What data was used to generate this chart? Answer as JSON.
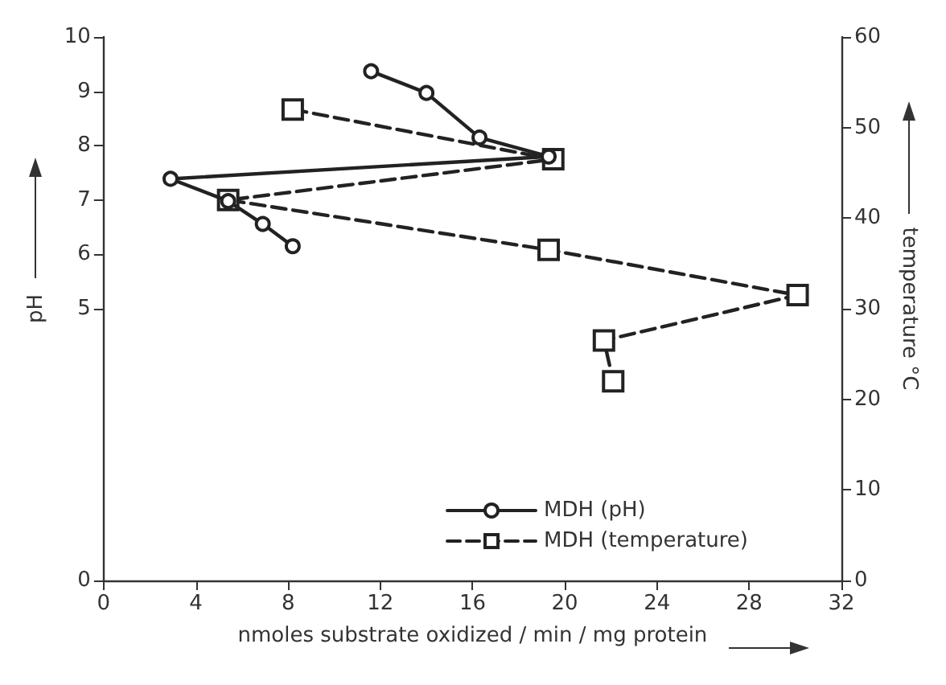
{
  "chart_data": {
    "type": "line",
    "xlabel": "nmoles substrate oxidized / min / mg protein",
    "ylabel": "pH",
    "y2label": "temperature °C",
    "series": [
      {
        "name": "MDH (pH)",
        "color": "#222222",
        "marker": "circle",
        "line_style": "solid",
        "axis": "y",
        "x": [
          11.6,
          14,
          16.3,
          19.3,
          2.9,
          5.4,
          6.9,
          8.2
        ],
        "values": [
          9.37,
          8.97,
          8.15,
          7.8,
          7.39,
          6.98,
          6.56,
          6.15
        ]
      },
      {
        "name": "MDH (temperature)",
        "color": "#222222",
        "marker": "square",
        "line_style": "dashed",
        "axis": "y2",
        "x": [
          8.2,
          19.5,
          5.4,
          19.3,
          30.1,
          21.7,
          22.1
        ],
        "values": [
          52,
          46.5,
          42,
          36.5,
          31.5,
          26.5,
          22
        ]
      }
    ],
    "xlim": [
      0,
      32
    ],
    "xticks": [
      0,
      4,
      8,
      12,
      16,
      20,
      24,
      28,
      32
    ],
    "ylim": [
      0,
      10
    ],
    "yticks": [
      0,
      5,
      6,
      7,
      8,
      9,
      10
    ],
    "y2lim": [
      0,
      60
    ],
    "y2ticks": [
      0,
      10,
      20,
      30,
      40,
      50,
      60
    ],
    "grid": false,
    "legend": "bottom right"
  }
}
